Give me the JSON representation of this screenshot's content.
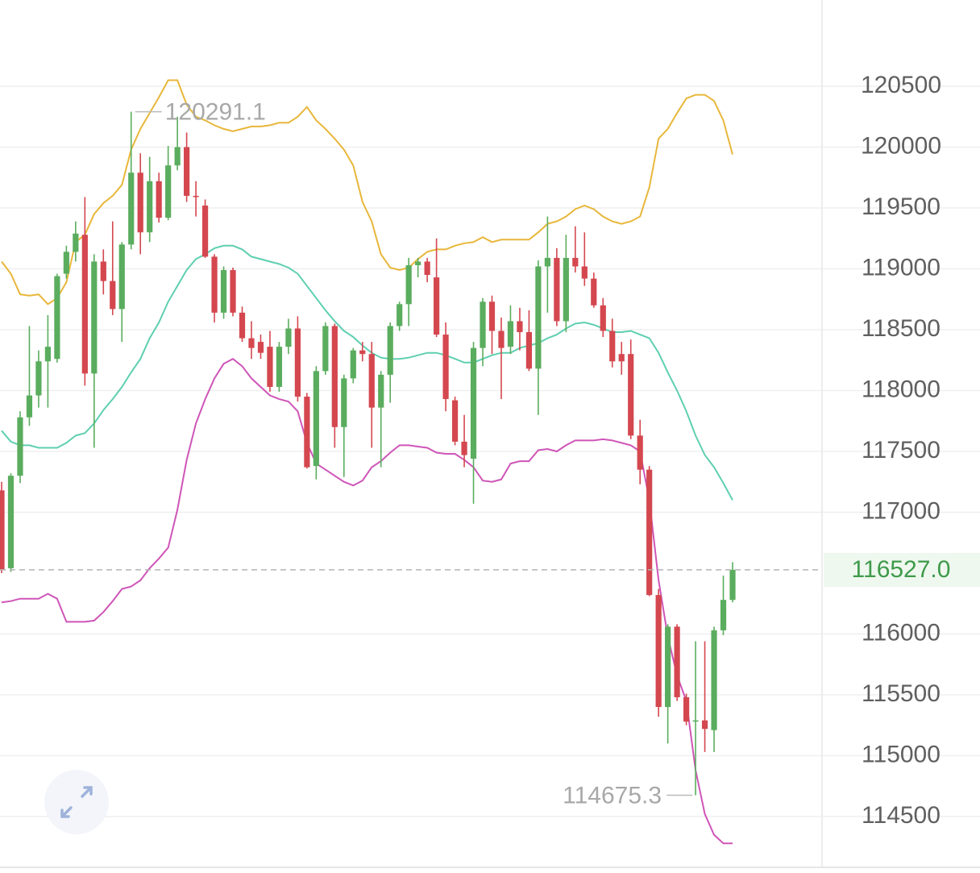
{
  "chart_data": {
    "type": "candlestick",
    "open": [
      117180,
      116540,
      117300,
      117780,
      117960,
      118240,
      118260,
      118960,
      119140,
      119280,
      118140,
      119060,
      118900,
      118670,
      119200,
      119790,
      119300,
      119720,
      119420,
      119850,
      120000,
      119600,
      119520,
      119100,
      118640,
      118990,
      118640,
      118430,
      118400,
      118360,
      118030,
      118360,
      118510,
      117950,
      117380,
      118160,
      118530,
      117700,
      118100,
      118330,
      118300,
      117860,
      118130,
      118530,
      118710,
      119030,
      119060,
      118930,
      118460,
      117920,
      117580,
      117440,
      118350,
      118730,
      118490,
      118360,
      118570,
      118480,
      118180,
      119020,
      119090,
      118570,
      119090,
      119020,
      118920,
      118700,
      118490,
      118300,
      118300,
      117630,
      117350,
      116320,
      115400,
      116060,
      115480,
      115280,
      115290,
      115210,
      116030,
      116280
    ],
    "high": [
      117250,
      117320,
      117830,
      118530,
      118330,
      118620,
      118960,
      119190,
      119390,
      119590,
      119120,
      119160,
      119390,
      119220,
      120291.1,
      119950,
      119920,
      119790,
      120010,
      120250,
      120120,
      119720,
      119570,
      119120,
      119020,
      119010,
      118690,
      118570,
      118460,
      118490,
      118400,
      118590,
      118610,
      117980,
      118200,
      118560,
      118550,
      118130,
      118350,
      118400,
      118400,
      118160,
      118560,
      118730,
      119090,
      119090,
      119090,
      119250,
      118560,
      117950,
      117800,
      118400,
      118760,
      118780,
      118600,
      118700,
      118680,
      118660,
      119070,
      119430,
      119170,
      119280,
      119350,
      119300,
      118970,
      118760,
      118590,
      118400,
      118420,
      117760,
      117380,
      116370,
      116080,
      116080,
      115510,
      115940,
      115940,
      116060,
      116480,
      116590
    ],
    "low": [
      116500,
      116510,
      117240,
      117710,
      117860,
      117860,
      118230,
      118920,
      119060,
      118040,
      117530,
      118790,
      118620,
      118400,
      119160,
      119120,
      119220,
      119380,
      119400,
      119810,
      119550,
      119430,
      119090,
      118560,
      118590,
      118610,
      118400,
      118260,
      118260,
      117990,
      117990,
      118300,
      117910,
      117360,
      117270,
      118130,
      117530,
      117290,
      118060,
      118240,
      117530,
      117370,
      117900,
      118490,
      118530,
      118930,
      118890,
      118440,
      117830,
      117550,
      117370,
      117070,
      118200,
      118300,
      117930,
      118300,
      118330,
      118160,
      117800,
      118640,
      118530,
      118480,
      118970,
      118860,
      118680,
      118440,
      118190,
      118130,
      117600,
      117230,
      116310,
      115320,
      115100,
      115450,
      115250,
      114675.3,
      115030,
      115030,
      115990,
      116260
    ],
    "close": [
      116530,
      117300,
      117780,
      117960,
      118240,
      118360,
      118940,
      119140,
      119290,
      118140,
      119060,
      118900,
      118670,
      119200,
      119790,
      119300,
      119720,
      119420,
      119850,
      120000,
      119600,
      119590,
      119100,
      118640,
      118990,
      118640,
      118430,
      118350,
      118310,
      118030,
      118360,
      118510,
      117950,
      117370,
      118160,
      118530,
      117700,
      118100,
      118330,
      118300,
      117860,
      118130,
      118530,
      118710,
      119030,
      119060,
      118950,
      118460,
      117930,
      117580,
      117470,
      118350,
      118730,
      118490,
      118350,
      118570,
      118480,
      118180,
      119020,
      119090,
      118570,
      119090,
      119020,
      118920,
      118700,
      118490,
      118240,
      118240,
      117630,
      117350,
      116320,
      115400,
      116060,
      115480,
      115280,
      115290,
      115220,
      116030,
      116280,
      116527
    ],
    "up_color": "#5aad5e",
    "down_color": "#d4474f",
    "lines": [
      {
        "color": "#e8b73a",
        "values": [
          119060,
          118960,
          118790,
          118780,
          118790,
          118710,
          118760,
          118890,
          119220,
          119280,
          119450,
          119540,
          119600,
          119690,
          119980,
          120150,
          120280,
          120410,
          120550,
          120550,
          120350,
          120250,
          120220,
          120180,
          120150,
          120130,
          120150,
          120170,
          120170,
          120180,
          120200,
          120200,
          120250,
          120330,
          120220,
          120150,
          120070,
          119980,
          119850,
          119550,
          119390,
          119120,
          119010,
          118990,
          119010,
          119080,
          119140,
          119160,
          119160,
          119190,
          119210,
          119220,
          119260,
          119220,
          119240,
          119240,
          119240,
          119240,
          119300,
          119370,
          119390,
          119430,
          119490,
          119520,
          119490,
          119430,
          119390,
          119370,
          119390,
          119430,
          119670,
          120070,
          120150,
          120280,
          120400,
          120430,
          120430,
          120380,
          120220,
          119940
        ]
      },
      {
        "color": "#5ecfb0",
        "values": [
          117670,
          117580,
          117550,
          117550,
          117530,
          117530,
          117530,
          117570,
          117630,
          117650,
          117730,
          117840,
          117930,
          118030,
          118150,
          118260,
          118430,
          118560,
          118730,
          118860,
          118990,
          119080,
          119120,
          119170,
          119190,
          119190,
          119160,
          119100,
          119080,
          119060,
          119040,
          119010,
          118960,
          118860,
          118760,
          118660,
          118570,
          118490,
          118440,
          118370,
          118310,
          118270,
          118260,
          118260,
          118270,
          118290,
          118310,
          118310,
          118290,
          118260,
          118230,
          118230,
          118260,
          118290,
          118310,
          118310,
          118350,
          118370,
          118390,
          118430,
          118460,
          118510,
          118550,
          118560,
          118540,
          118510,
          118480,
          118480,
          118490,
          118460,
          118430,
          118310,
          118150,
          118000,
          117830,
          117630,
          117470,
          117370,
          117240,
          117100
        ]
      },
      {
        "color": "#cf55b8",
        "values": [
          116260,
          116270,
          116290,
          116290,
          116290,
          116330,
          116290,
          116100,
          116100,
          116100,
          116110,
          116180,
          116270,
          116370,
          116390,
          116440,
          116540,
          116620,
          116710,
          117020,
          117430,
          117730,
          117930,
          118100,
          118220,
          118260,
          118200,
          118100,
          118030,
          117960,
          117930,
          117910,
          117830,
          117570,
          117400,
          117350,
          117300,
          117250,
          117220,
          117260,
          117370,
          117420,
          117490,
          117550,
          117550,
          117540,
          117530,
          117490,
          117480,
          117480,
          117430,
          117370,
          117260,
          117250,
          117270,
          117400,
          117420,
          117420,
          117510,
          117520,
          117500,
          117550,
          117590,
          117590,
          117590,
          117600,
          117590,
          117570,
          117550,
          117500,
          117100,
          116440,
          115980,
          115660,
          115450,
          114880,
          114520,
          114350,
          114280,
          114280
        ]
      }
    ],
    "ylim": [
      114036,
      121209
    ],
    "yticks": [
      120500,
      120000,
      119500,
      119000,
      118500,
      118000,
      117500,
      117000,
      116000,
      115500,
      115000,
      114500
    ],
    "grid": true,
    "last_price": {
      "value": 116527,
      "label": "116527.0"
    },
    "high_label": "120291.1",
    "low_label": "114675.3"
  }
}
